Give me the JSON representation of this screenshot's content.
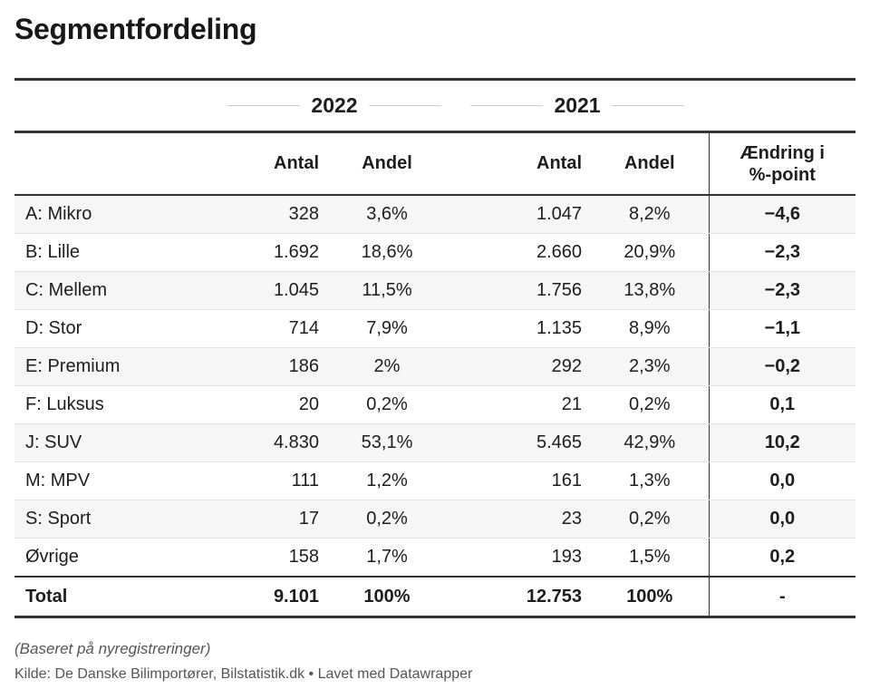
{
  "chart_data": {
    "type": "table",
    "title": "Segmentfordeling",
    "groups": [
      "2022",
      "2021"
    ],
    "columns": [
      "",
      "Antal",
      "Andel",
      "Antal",
      "Andel",
      "Ændring i %-point"
    ],
    "rows": [
      {
        "segment": "A: Mikro",
        "antal_2022": "328",
        "andel_2022": "3,6%",
        "antal_2021": "1.047",
        "andel_2021": "8,2%",
        "change": "−4,6"
      },
      {
        "segment": "B: Lille",
        "antal_2022": "1.692",
        "andel_2022": "18,6%",
        "antal_2021": "2.660",
        "andel_2021": "20,9%",
        "change": "−2,3"
      },
      {
        "segment": "C: Mellem",
        "antal_2022": "1.045",
        "andel_2022": "11,5%",
        "antal_2021": "1.756",
        "andel_2021": "13,8%",
        "change": "−2,3"
      },
      {
        "segment": "D: Stor",
        "antal_2022": "714",
        "andel_2022": "7,9%",
        "antal_2021": "1.135",
        "andel_2021": "8,9%",
        "change": "−1,1"
      },
      {
        "segment": "E: Premium",
        "antal_2022": "186",
        "andel_2022": "2%",
        "antal_2021": "292",
        "andel_2021": "2,3%",
        "change": "−0,2"
      },
      {
        "segment": "F: Luksus",
        "antal_2022": "20",
        "andel_2022": "0,2%",
        "antal_2021": "21",
        "andel_2021": "0,2%",
        "change": "0,1"
      },
      {
        "segment": "J: SUV",
        "antal_2022": "4.830",
        "andel_2022": "53,1%",
        "antal_2021": "5.465",
        "andel_2021": "42,9%",
        "change": "10,2"
      },
      {
        "segment": "M: MPV",
        "antal_2022": "111",
        "andel_2022": "1,2%",
        "antal_2021": "161",
        "andel_2021": "1,3%",
        "change": "0,0"
      },
      {
        "segment": "S: Sport",
        "antal_2022": "17",
        "andel_2022": "0,2%",
        "antal_2021": "23",
        "andel_2021": "0,2%",
        "change": "0,0"
      },
      {
        "segment": "Øvrige",
        "antal_2022": "158",
        "andel_2022": "1,7%",
        "antal_2021": "193",
        "andel_2021": "1,5%",
        "change": "0,2"
      }
    ],
    "total": {
      "segment": "Total",
      "antal_2022": "9.101",
      "andel_2022": "100%",
      "antal_2021": "12.753",
      "andel_2021": "100%",
      "change": "-"
    }
  },
  "header": {
    "group_2022": "2022",
    "group_2021": "2021",
    "col_antal": "Antal",
    "col_andel": "Andel",
    "col_change_line1": "Ændring i",
    "col_change_line2": "%-point"
  },
  "footer": {
    "note": "(Baseret på nyregistreringer)",
    "source": "Kilde: De Danske Bilimportører, Bilstatistik.dk • Lavet med Datawrapper"
  }
}
